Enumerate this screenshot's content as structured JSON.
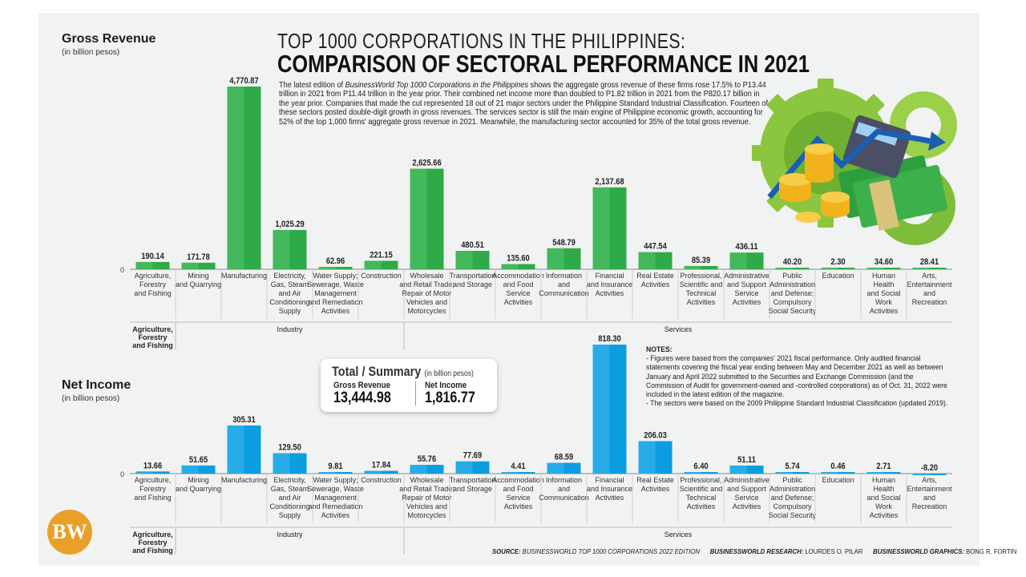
{
  "header": {
    "title_line1": "TOP 1000 CORPORATIONS IN THE PHILIPPINES:",
    "title_line2": "COMPARISON OF SECTORAL PERFORMANCE IN 2021",
    "intro_pre": "The latest edition of ",
    "intro_italic": "BusinessWorld Top 1000 Corporations in the Philippines",
    "intro_post": " shows the aggregate gross revenue of these firms rose 17.5% to P13.44 trillion in 2021 from P11.44 trillion in the year prior. Their combined net income more than doubled to P1.82 trillion in 2021 from the P820.17 billion in the year prior. Companies that made the cut represented 18 out of 21 major sectors under the  Philippine Standard Industrial Classification. Fourteen of these sectors posted double-digit growth in gross revenues. The services sector is still the main engine of Philippine economic growth, accounting for 52% of the top 1,000 firms' aggregate gross revenue in 2021. Meanwhile, the  manufacturing sector accounted for 35% of the total gross revenue."
  },
  "sections": {
    "gross_title": "Gross Revenue",
    "gross_sub": "(in billion pesos)",
    "net_title": "Net Income",
    "net_sub": "(in billion pesos)"
  },
  "summary": {
    "title": "Total / Summary",
    "unit": "(in billion pesos)",
    "gross_label": "Gross Revenue",
    "gross_value": "13,444.98",
    "net_label": "Net Income",
    "net_value": "1,816.77"
  },
  "notes": {
    "heading": "NOTES:",
    "line1": "- Figures were based from the companies' 2021 fiscal performance. Only audited financial statements covering the fiscal year ending between May and December 2021 as well as between January and April 2022 submitted to the Securities and Exchange Commission (and the Commission of Audit for government-owned and -controlled corporations) as of Oct. 31, 2022 were included in the latest edition of the magazine.",
    "line2": "- The sectors were based on the 2009 Philippine Standard Industrial Classification (updated 2019)."
  },
  "footer": {
    "source_label": "SOURCE:",
    "source_text": "BUSINESSWORLD TOP 1000 CORPORATIONS 2022 EDITION",
    "research_label": "BUSINESSWORLD RESEARCH:",
    "research_text": "LOURDES O. PILAR",
    "graphics_label": "BUSINESSWORLD GRAPHICS:",
    "graphics_text": "BONG R. FORTIN"
  },
  "logo": {
    "text": "BW"
  },
  "chart_data": [
    {
      "type": "bar",
      "title": "Gross Revenue",
      "ylabel": "(in billion pesos)",
      "zero_label": "0",
      "color": "#2eab48",
      "color_light": "#58c36d",
      "categories": [
        "Agriculture, Forestry and Fishing",
        "Mining and Quarrying",
        "Manufacturing",
        "Electricity, Gas, Steam and Air Conditioning Supply",
        "Water Supply; Sewerage, Waste Management and Remediation Activities",
        "Construction",
        "Wholesale and Retail Trade; Repair of Motor Vehicles and Motorcycles",
        "Transportation and Storage",
        "Accommodation and Food Service Activities",
        "Information and Communication",
        "Financial and Insurance Activities",
        "Real Estate Activities",
        "Professional, Scientific and Technical Activities",
        "Administrative and Support Service Activities",
        "Public Administration and Defense; Compulsory Social Security",
        "Education",
        "Human Health and Social Work Activities",
        "Arts, Entertainment and Recreation"
      ],
      "values": [
        190.14,
        171.78,
        4770.87,
        1025.29,
        62.96,
        221.15,
        2625.66,
        480.51,
        135.6,
        548.79,
        2137.68,
        447.54,
        85.39,
        436.11,
        40.2,
        2.3,
        34.6,
        28.41
      ],
      "value_labels": [
        "190.14",
        "171.78",
        "4,770.87",
        "1,025.29",
        "62.96",
        "221.15",
        "2,625.66",
        "480.51",
        "135.60",
        "548.79",
        "2,137.68",
        "447.54",
        "85.39",
        "436.11",
        "40.20",
        "2.30",
        "34.60",
        "28.41"
      ],
      "groups": [
        "Agriculture, Forestry and Fishing",
        "Industry",
        "Services"
      ]
    },
    {
      "type": "bar",
      "title": "Net Income",
      "ylabel": "(in billion pesos)",
      "zero_label": "0",
      "color": "#0a9ee0",
      "color_light": "#3fb8ee",
      "categories": [
        "Agriculture, Forestry and Fishing",
        "Mining and Quarrying",
        "Manufacturing",
        "Electricity, Gas, Steam and Air Conditioning Supply",
        "Water Supply; Sewerage, Waste Management and Remediation Activities",
        "Construction",
        "Wholesale and Retail Trade; Repair of Motor Vehicles and Motorcycles",
        "Transportation and Storage",
        "Accommodation and Food Service Activities",
        "Information and Communication",
        "Financial and Insurance Activities",
        "Real Estate Activities",
        "Professional, Scientific and Technical Activities",
        "Administrative and Support Service Activities",
        "Public Administration and Defense; Compulsory Social Security",
        "Education",
        "Human Health and Social Work Activities",
        "Arts, Entertainment and Recreation"
      ],
      "values": [
        13.66,
        51.65,
        305.31,
        129.5,
        9.81,
        17.84,
        55.76,
        77.69,
        4.41,
        68.59,
        818.3,
        206.03,
        6.4,
        51.11,
        5.74,
        0.46,
        2.71,
        -8.2
      ],
      "value_labels": [
        "13.66",
        "51.65",
        "305.31",
        "129.50",
        "9.81",
        "17.84",
        "55.76",
        "77.69",
        "4.41",
        "68.59",
        "818.30",
        "206.03",
        "6.40",
        "51.11",
        "5.74",
        "0.46",
        "2.71",
        "-8.20"
      ],
      "groups": [
        "Agriculture, Forestry and Fishing",
        "Industry",
        "Services"
      ]
    }
  ]
}
